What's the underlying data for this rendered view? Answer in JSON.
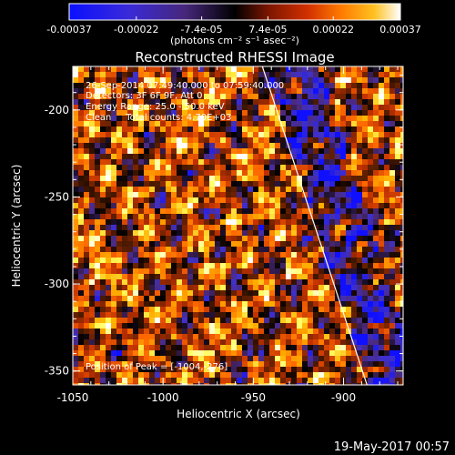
{
  "colorbar": {
    "ticks": [
      "-0.00037",
      "-0.00022",
      "-7.4e-05",
      "7.4e-05",
      "0.00022",
      "0.00037"
    ],
    "tick_values": [
      -0.00037,
      -0.00022,
      -7.4e-05,
      7.4e-05,
      0.00022,
      0.00037
    ],
    "range": [
      -0.00037,
      0.00037
    ],
    "units": "(photons cm⁻² s⁻¹ asec⁻²)"
  },
  "title": "Reconstructed RHESSI Image",
  "info": {
    "time": "26-Sep-2014 07:49:40.000 to 07:59:40.000",
    "detectors": "Detectors: 3F 6F 9F, Att 0",
    "energy": "Energy Range: 25.0 - 50.0 keV",
    "clean": "Clean     Total counts: 4.70E+03",
    "peak": "Position of Peak = [-1004,-276]"
  },
  "axes": {
    "xlabel": "Heliocentric X (arcsec)",
    "ylabel": "Heliocentric Y (arcsec)",
    "xticks": [
      "-1050",
      "-1000",
      "-950",
      "-900"
    ],
    "xtick_values": [
      -1050,
      -1000,
      -950,
      -900
    ],
    "yticks": [
      "-200",
      "-250",
      "-300",
      "-350"
    ],
    "ytick_values": [
      -200,
      -250,
      -300,
      -350
    ],
    "xlim": [
      -1050,
      -867
    ],
    "ylim": [
      -358,
      -175
    ]
  },
  "limb_line": {
    "start": [
      -945,
      -175
    ],
    "end": [
      -887,
      -358
    ]
  },
  "footer": {
    "date": "19-May-2017 00:57"
  },
  "colors": {
    "background": "#000000",
    "text": "#ffffff",
    "colormap": [
      "#1010ff",
      "#4030c8",
      "#4c2a78",
      "#000000",
      "#5a1e00",
      "#c03000",
      "#ff6a00",
      "#ffb000",
      "#ffff60",
      "#ffffff"
    ]
  }
}
